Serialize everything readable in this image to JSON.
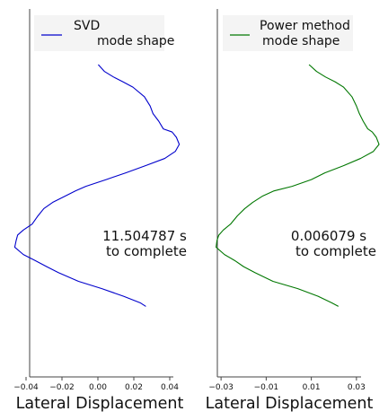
{
  "chart_data": [
    {
      "type": "line",
      "xlabel": "Lateral Displacement",
      "legend": {
        "lines": [
          "SVD",
          "mode shape"
        ],
        "placement": "top"
      },
      "annotation": {
        "lines": [
          "11.504787 s",
          "to complete"
        ]
      },
      "color": "#0000cc",
      "xlim": [
        -0.05,
        0.05
      ],
      "ylim": [
        0,
        100
      ],
      "xticks": [
        {
          "value": -0.04,
          "label": "−0.04"
        },
        {
          "value": -0.02,
          "label": "−0.02"
        },
        {
          "value": 0.0,
          "label": "0.00"
        },
        {
          "value": 0.02,
          "label": "0.02"
        },
        {
          "value": 0.04,
          "label": "0.04"
        }
      ],
      "series": [
        {
          "points": [
            [
              0.0002,
              100
            ],
            [
              0.0036,
              97.6
            ],
            [
              0.0087,
              95.6
            ],
            [
              0.0139,
              93.9
            ],
            [
              0.0195,
              92.0
            ],
            [
              0.0259,
              88.6
            ],
            [
              0.0291,
              85.3
            ],
            [
              0.0307,
              82.6
            ],
            [
              0.0339,
              79.9
            ],
            [
              0.0364,
              77.2
            ],
            [
              0.0413,
              76.1
            ],
            [
              0.0437,
              74.2
            ],
            [
              0.0453,
              71.7
            ],
            [
              0.0431,
              69.2
            ],
            [
              0.0372,
              66.7
            ],
            [
              0.0268,
              64.2
            ],
            [
              0.0155,
              61.6
            ],
            [
              0.0046,
              59.2
            ],
            [
              -0.0067,
              56.8
            ],
            [
              -0.0124,
              55.2
            ],
            [
              -0.0181,
              53.4
            ],
            [
              -0.0252,
              51.1
            ],
            [
              -0.0301,
              48.9
            ],
            [
              -0.0334,
              46.3
            ],
            [
              -0.0366,
              43.4
            ],
            [
              -0.0415,
              41.3
            ],
            [
              -0.0447,
              39.5
            ],
            [
              -0.0455,
              37.6
            ],
            [
              -0.0463,
              35.2
            ],
            [
              -0.0415,
              32.6
            ],
            [
              -0.035,
              30.5
            ],
            [
              -0.0285,
              28.3
            ],
            [
              -0.022,
              26.2
            ],
            [
              -0.0108,
              23.1
            ],
            [
              0.0022,
              20.5
            ],
            [
              0.0143,
              17.8
            ],
            [
              0.0235,
              15.5
            ],
            [
              0.0267,
              14.2
            ]
          ]
        }
      ]
    },
    {
      "type": "line",
      "xlabel": "Lateral Displacement",
      "legend": {
        "lines": [
          "Power method",
          "mode shape"
        ],
        "placement": "top"
      },
      "annotation": {
        "lines": [
          "0.006079 s",
          "to complete"
        ]
      },
      "color": "#007700",
      "xlim": [
        -0.04,
        0.04
      ],
      "ylim": [
        0,
        100
      ],
      "xticks": [
        {
          "value": -0.03,
          "label": "−0.03"
        },
        {
          "value": -0.01,
          "label": "−0.01"
        },
        {
          "value": 0.01,
          "label": "0.01"
        },
        {
          "value": 0.03,
          "label": "0.03"
        }
      ],
      "series": [
        {
          "points": [
            [
              0.009,
              100
            ],
            [
              0.0123,
              97.6
            ],
            [
              0.0163,
              95.6
            ],
            [
              0.0205,
              93.9
            ],
            [
              0.0243,
              92.0
            ],
            [
              0.028,
              88.6
            ],
            [
              0.03,
              85.3
            ],
            [
              0.0313,
              82.6
            ],
            [
              0.033,
              79.9
            ],
            [
              0.035,
              77.2
            ],
            [
              0.037,
              76.1
            ],
            [
              0.0388,
              74.2
            ],
            [
              0.04,
              71.7
            ],
            [
              0.0375,
              69.2
            ],
            [
              0.0318,
              66.7
            ],
            [
              0.0245,
              64.2
            ],
            [
              0.016,
              61.6
            ],
            [
              0.01,
              59.2
            ],
            [
              0.0015,
              56.8
            ],
            [
              -0.0065,
              55.2
            ],
            [
              -0.0115,
              53.4
            ],
            [
              -0.016,
              51.1
            ],
            [
              -0.0195,
              48.9
            ],
            [
              -0.0228,
              46.3
            ],
            [
              -0.0258,
              43.4
            ],
            [
              -0.029,
              41.3
            ],
            [
              -0.031,
              39.5
            ],
            [
              -0.0318,
              37.6
            ],
            [
              -0.0322,
              35.2
            ],
            [
              -0.0285,
              32.6
            ],
            [
              -0.024,
              30.5
            ],
            [
              -0.02,
              28.3
            ],
            [
              -0.015,
              26.2
            ],
            [
              -0.007,
              23.1
            ],
            [
              0.004,
              20.5
            ],
            [
              0.013,
              17.8
            ],
            [
              0.019,
              15.5
            ],
            [
              0.022,
              14.2
            ]
          ]
        }
      ]
    }
  ]
}
